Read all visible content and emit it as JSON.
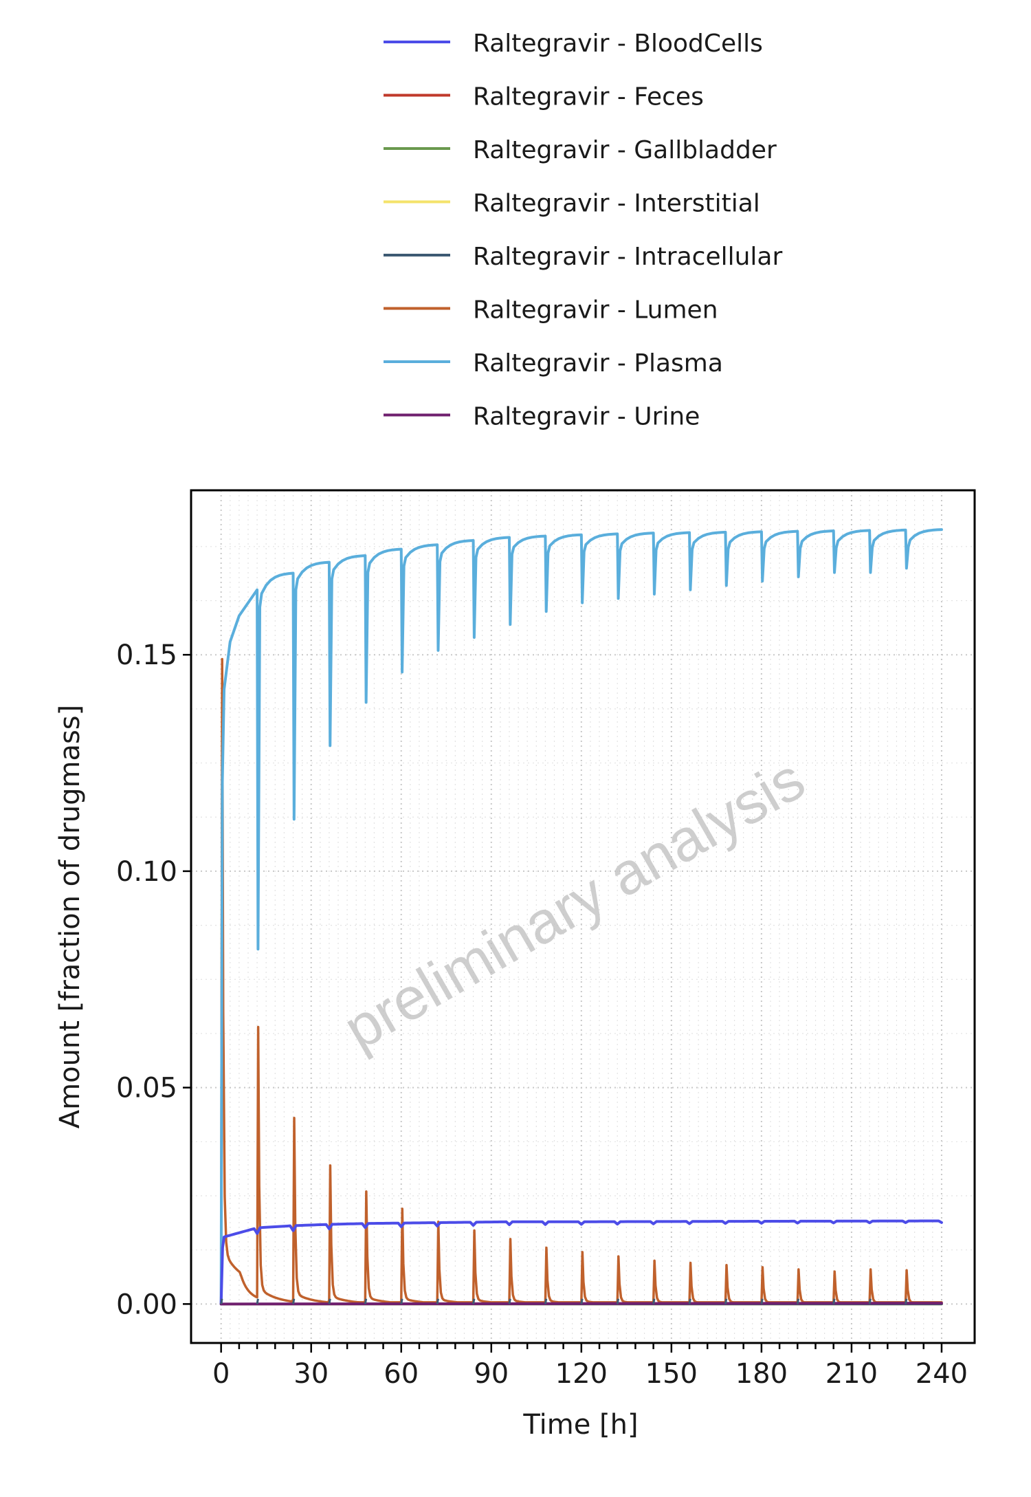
{
  "chart_data": {
    "type": "line",
    "xlabel": "Time [h]",
    "ylabel": "Amount [fraction of drugmass]",
    "xlim": [
      -10,
      251
    ],
    "ylim": [
      -0.009,
      0.188
    ],
    "x_ticks": [
      0,
      30,
      60,
      90,
      120,
      150,
      180,
      210,
      240
    ],
    "x_tick_labels": [
      "0",
      "30",
      "60",
      "90",
      "120",
      "150",
      "180",
      "210",
      "240"
    ],
    "y_ticks": [
      0.0,
      0.05,
      0.1,
      0.15
    ],
    "y_tick_labels": [
      "0.00",
      "0.05",
      "0.10",
      "0.15"
    ],
    "grid": true,
    "legend_position": "top",
    "watermark": "preliminary analysis",
    "dosing_interval_h": 12,
    "series": [
      {
        "name": "Raltegravir - BloodCells",
        "color": "#4c4ce8",
        "key_points": {
          "x": [
            0,
            1,
            12,
            24,
            36,
            48,
            60,
            72,
            96,
            120,
            168,
            240
          ],
          "y": [
            0.0,
            0.0155,
            0.0176,
            0.0181,
            0.0184,
            0.0186,
            0.0187,
            0.0188,
            0.019,
            0.019,
            0.0191,
            0.0192
          ]
        }
      },
      {
        "name": "Raltegravir - Feces",
        "color": "#c0392b",
        "key_points": {
          "x": [
            0,
            240
          ],
          "y": [
            0.0,
            0.0
          ]
        }
      },
      {
        "name": "Raltegravir - Gallbladder",
        "color": "#6a994e",
        "key_points": {
          "x": [
            0,
            240
          ],
          "y": [
            0.0,
            0.0
          ]
        }
      },
      {
        "name": "Raltegravir - Interstitial",
        "color": "#f4e36b",
        "key_points": {
          "x": [
            0,
            240
          ],
          "y": [
            0.0,
            0.0
          ]
        }
      },
      {
        "name": "Raltegravir - Intracellular",
        "color": "#3d5a73",
        "key_points": {
          "x": [
            0,
            240
          ],
          "y": [
            0.0,
            0.0
          ]
        }
      },
      {
        "name": "Raltegravir - Lumen",
        "color": "#c0612c",
        "dose_peaks": {
          "x": [
            0,
            12,
            24,
            36,
            48,
            60,
            72,
            84,
            96,
            108,
            120,
            132,
            144,
            156,
            168,
            180,
            192,
            204,
            216,
            228
          ],
          "y": [
            0.149,
            0.064,
            0.043,
            0.032,
            0.026,
            0.022,
            0.019,
            0.017,
            0.015,
            0.013,
            0.012,
            0.011,
            0.01,
            0.0095,
            0.009,
            0.0085,
            0.008,
            0.0075,
            0.008,
            0.0078
          ]
        }
      },
      {
        "name": "Raltegravir - Plasma",
        "color": "#5aaedc",
        "trough_before_dose": {
          "x": [
            12,
            24,
            36,
            48,
            60,
            72,
            84,
            96,
            108,
            120,
            132,
            144,
            156,
            168,
            180,
            192,
            204,
            216,
            228
          ],
          "y": [
            0.082,
            0.112,
            0.129,
            0.139,
            0.146,
            0.151,
            0.154,
            0.157,
            0.16,
            0.162,
            0.163,
            0.164,
            0.165,
            0.166,
            0.167,
            0.168,
            0.169,
            0.169,
            0.17
          ]
        },
        "peak_at_end_of_interval": {
          "x": [
            12,
            24,
            36,
            48,
            60,
            72,
            84,
            96,
            108,
            120,
            132,
            144,
            156,
            168,
            180,
            192,
            204,
            216,
            228,
            240
          ],
          "y": [
            0.165,
            0.169,
            0.1715,
            0.173,
            0.1745,
            0.1755,
            0.1765,
            0.1772,
            0.1775,
            0.1778,
            0.178,
            0.1782,
            0.1783,
            0.1784,
            0.1785,
            0.1786,
            0.1787,
            0.1788,
            0.1789,
            0.179
          ]
        }
      },
      {
        "name": "Raltegravir - Urine",
        "color": "#6f1f6e",
        "key_points": {
          "x": [
            0,
            240
          ],
          "y": [
            0.0,
            0.0002
          ]
        }
      }
    ]
  }
}
